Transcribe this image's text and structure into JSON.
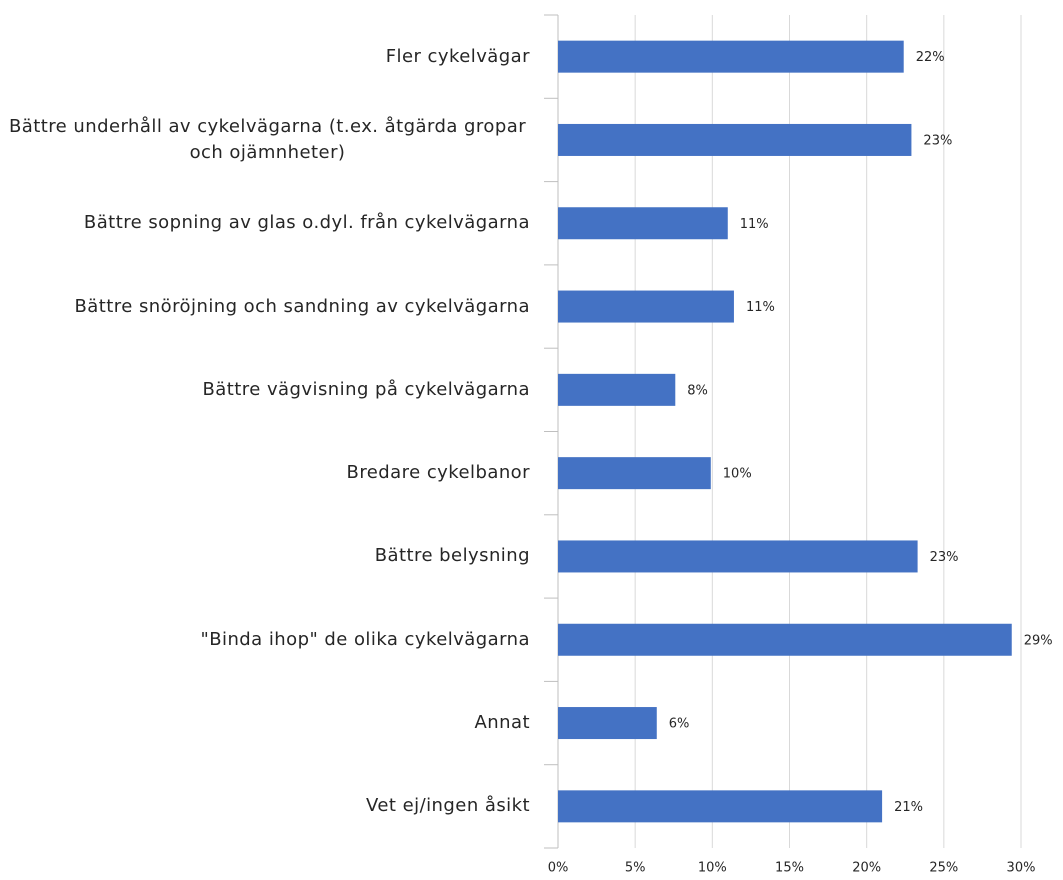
{
  "chart_data": {
    "type": "bar",
    "orientation": "horizontal",
    "categories": [
      "Fler cykelvägar",
      "Bättre underhåll av cykelvägarna (t.ex. åtgärda gropar och ojämnheter)",
      "Bättre sopning av glas o.dyl. från cykelvägarna",
      "Bättre snöröjning och sandning av cykelvägarna",
      "Bättre vägvisning på cykelvägarna",
      "Bredare cykelbanor",
      "Bättre belysning",
      "\"Binda ihop\" de olika cykelvägarna",
      "Annat",
      "Vet ej/ingen åsikt"
    ],
    "values": [
      22.4,
      22.9,
      11.0,
      11.4,
      7.6,
      9.9,
      23.3,
      29.4,
      6.4,
      21.0
    ],
    "value_labels": [
      "22%",
      "23%",
      "11%",
      "11%",
      "8%",
      "10%",
      "23%",
      "29%",
      "6%",
      "21%"
    ],
    "color": "#4472c4",
    "xlim": [
      0,
      30
    ],
    "xticks": [
      {
        "value": 0,
        "label": "0%"
      },
      {
        "value": 5,
        "label": "5%"
      },
      {
        "value": 10,
        "label": "10%"
      },
      {
        "value": 15,
        "label": "15%"
      },
      {
        "value": 20,
        "label": "20%"
      },
      {
        "value": 25,
        "label": "25%"
      },
      {
        "value": 30,
        "label": "30%"
      }
    ],
    "grid": true
  }
}
